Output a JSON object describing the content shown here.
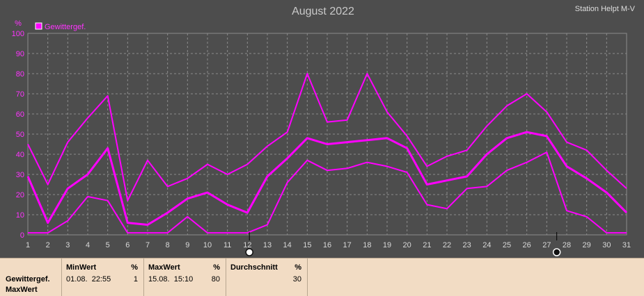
{
  "header": {
    "title": "August 2022",
    "station": "Station Helpt M-V"
  },
  "chart_data": {
    "type": "line",
    "ylabel": "%",
    "ylim": [
      0,
      100
    ],
    "yticks": [
      0,
      10,
      20,
      30,
      40,
      50,
      60,
      70,
      80,
      90,
      100
    ],
    "xlim": [
      1,
      31
    ],
    "x": [
      1,
      2,
      3,
      4,
      5,
      6,
      7,
      8,
      9,
      10,
      11,
      12,
      13,
      14,
      15,
      16,
      17,
      18,
      19,
      20,
      21,
      22,
      23,
      24,
      25,
      26,
      27,
      28,
      29,
      30,
      31
    ],
    "grid": true,
    "legend": {
      "label": "Gewittergef.",
      "color": "#ff00ff",
      "placement": "top-left"
    },
    "series": [
      {
        "role": "max",
        "color": "#ff00ff",
        "values": [
          45,
          25,
          46,
          58,
          69,
          17,
          37,
          24,
          28,
          35,
          30,
          35,
          44,
          51,
          80,
          56,
          57,
          80,
          61,
          49,
          34,
          39,
          42,
          54,
          64,
          70,
          61,
          46,
          42,
          32,
          23
        ]
      },
      {
        "role": "avg",
        "color": "#ff00ff",
        "values": [
          29,
          6,
          23,
          30,
          43,
          6,
          5,
          11,
          18,
          21,
          15,
          11,
          29,
          38,
          48,
          45,
          46,
          47,
          48,
          43,
          25,
          27,
          29,
          40,
          48,
          51,
          49,
          34,
          28,
          21,
          11
        ]
      },
      {
        "role": "min",
        "color": "#ff00ff",
        "values": [
          1,
          1,
          7,
          19,
          17,
          1,
          1,
          1,
          9,
          1,
          1,
          1,
          5,
          26,
          37,
          32,
          33,
          36,
          34,
          31,
          15,
          13,
          23,
          24,
          32,
          36,
          41,
          12,
          9,
          1,
          1
        ]
      }
    ],
    "moon_markers": [
      {
        "x": 12.1,
        "phase": "full-moon-icon"
      },
      {
        "x": 27.5,
        "phase": "new-moon-icon"
      }
    ]
  },
  "stats": {
    "row_label_1": "Gewittergef.",
    "row_label_2": "MaxWert",
    "min": {
      "header": "MinWert",
      "unit": "%",
      "datetime": "01.08.  22:55",
      "value": "1"
    },
    "max": {
      "header": "MaxWert",
      "unit": "%",
      "datetime": "15.08.  15:10",
      "value": "80"
    },
    "avg": {
      "header": "Durchschnitt",
      "unit": "%",
      "value": "30"
    }
  }
}
